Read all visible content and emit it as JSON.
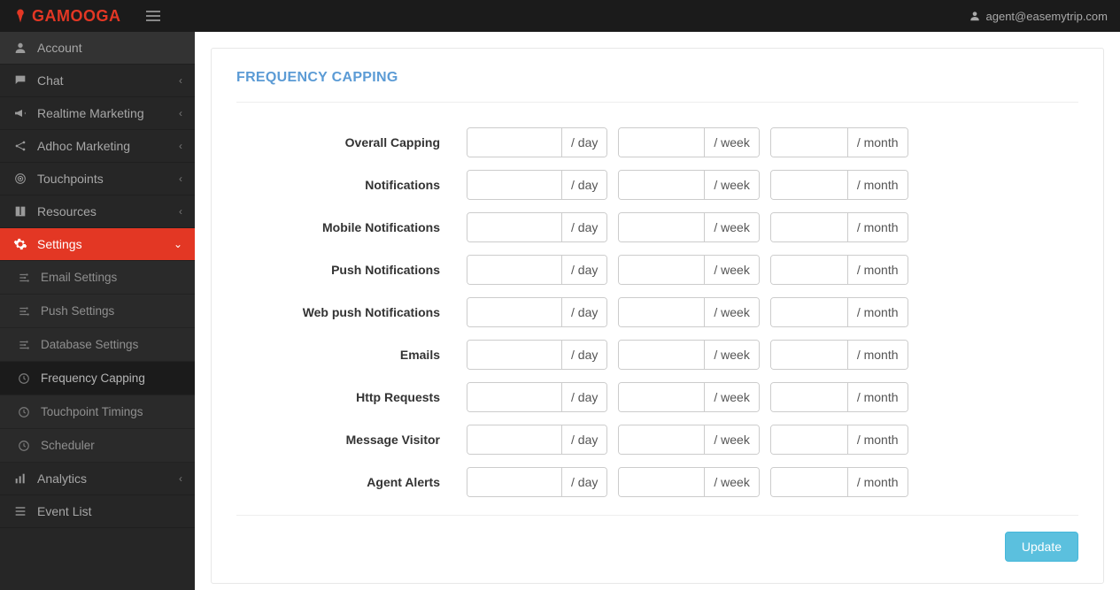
{
  "brand": {
    "name": "GAMOOGA",
    "color": "#e33724"
  },
  "user": {
    "email": "agent@easemytrip.com"
  },
  "sidebar": {
    "items": [
      {
        "label": "Account",
        "icon": "user-icon",
        "chev": false
      },
      {
        "label": "Chat",
        "icon": "chat-icon",
        "chev": true
      },
      {
        "label": "Realtime Marketing",
        "icon": "bullhorn-icon",
        "chev": true
      },
      {
        "label": "Adhoc Marketing",
        "icon": "share-icon",
        "chev": true
      },
      {
        "label": "Touchpoints",
        "icon": "target-icon",
        "chev": true
      },
      {
        "label": "Resources",
        "icon": "book-icon",
        "chev": true
      },
      {
        "label": "Settings",
        "icon": "cogs-icon",
        "chev": true
      },
      {
        "label": "Analytics",
        "icon": "chart-icon",
        "chev": true
      },
      {
        "label": "Event List",
        "icon": "list-icon",
        "chev": false
      }
    ],
    "settings_sub": [
      {
        "label": "Email Settings",
        "icon": "sliders-icon"
      },
      {
        "label": "Push Settings",
        "icon": "sliders-icon"
      },
      {
        "label": "Database Settings",
        "icon": "sliders-icon"
      },
      {
        "label": "Frequency Capping",
        "icon": "clock-icon"
      },
      {
        "label": "Touchpoint Timings",
        "icon": "clock-icon"
      },
      {
        "label": "Scheduler",
        "icon": "clock-icon"
      }
    ]
  },
  "page": {
    "title": "FREQUENCY CAPPING",
    "unit_day": "/ day",
    "unit_week": "/ week",
    "unit_month": "/ month",
    "update_label": "Update",
    "rows": [
      {
        "label": "Overall Capping",
        "day": "",
        "week": "",
        "month": ""
      },
      {
        "label": "Notifications",
        "day": "",
        "week": "",
        "month": ""
      },
      {
        "label": "Mobile Notifications",
        "day": "",
        "week": "",
        "month": ""
      },
      {
        "label": "Push Notifications",
        "day": "",
        "week": "",
        "month": ""
      },
      {
        "label": "Web push Notifications",
        "day": "",
        "week": "",
        "month": ""
      },
      {
        "label": "Emails",
        "day": "",
        "week": "",
        "month": ""
      },
      {
        "label": "Http Requests",
        "day": "",
        "week": "",
        "month": ""
      },
      {
        "label": "Message Visitor",
        "day": "",
        "week": "",
        "month": ""
      },
      {
        "label": "Agent Alerts",
        "day": "",
        "week": "",
        "month": ""
      }
    ]
  },
  "colors": {
    "topbar": "#1b1b1b",
    "sidebar": "#262626",
    "accent": "#e33724",
    "title": "#5b9bd5",
    "button": "#5bc0de",
    "border": "#cccccc",
    "text": "#333333"
  }
}
